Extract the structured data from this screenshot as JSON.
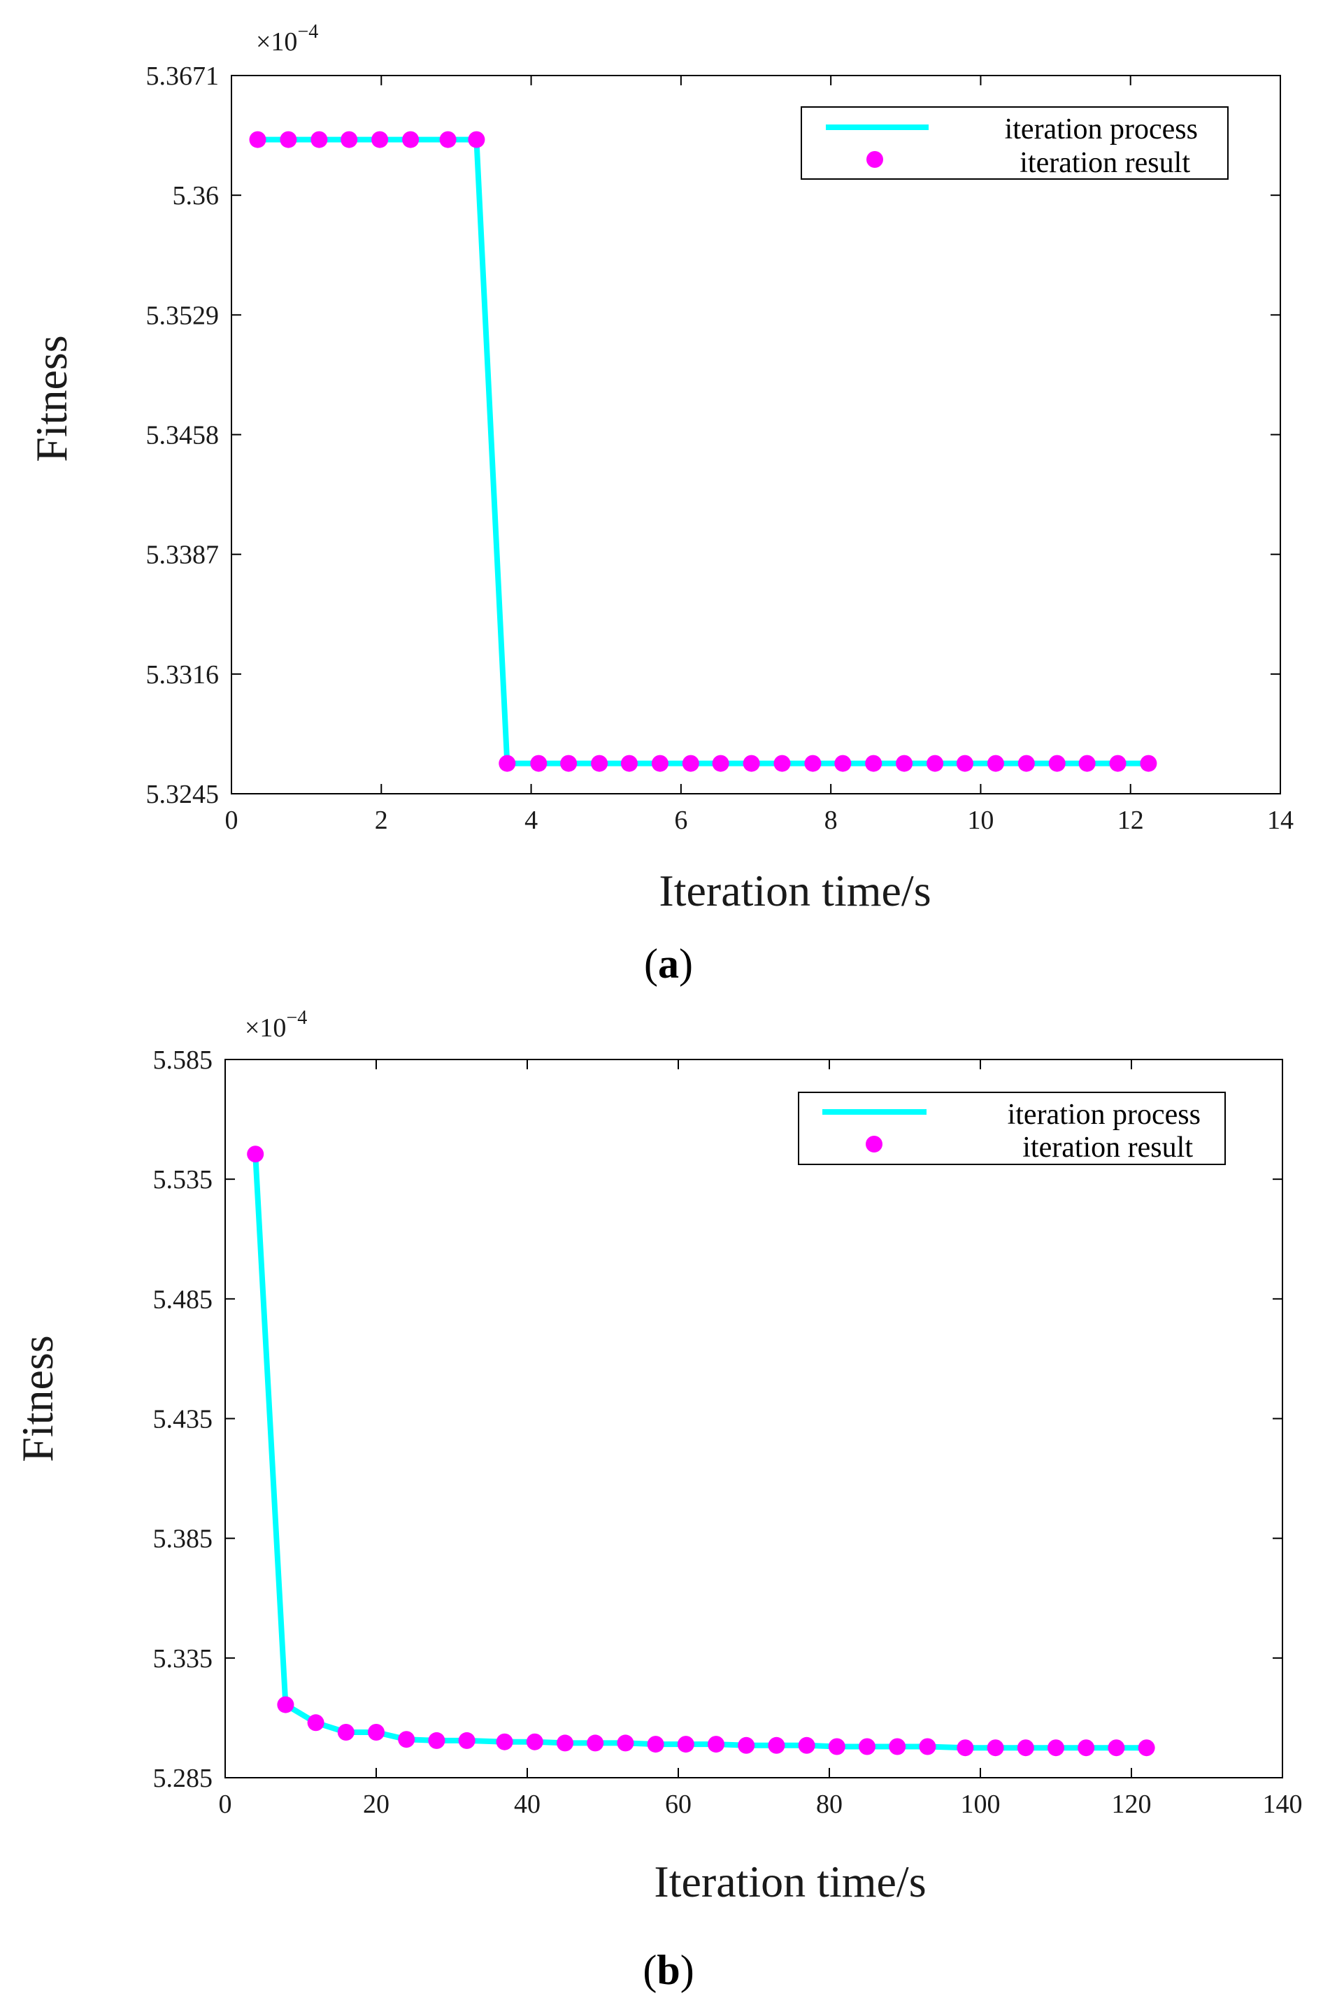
{
  "colors": {
    "line": "#00ffff",
    "marker": "#ff00ff",
    "axis": "#000000"
  },
  "chart_data": [
    {
      "type": "line",
      "panel_label": "a",
      "xlabel": "Iteration time/s",
      "ylabel": "Fitness",
      "y_multiplier": "×10",
      "y_multiplier_exp": "−4",
      "xlim": [
        0,
        14
      ],
      "ylim": [
        5.3245,
        5.3671
      ],
      "xticks": [
        "0",
        "2",
        "4",
        "6",
        "8",
        "10",
        "12",
        "14"
      ],
      "yticks": [
        "5.3245",
        "5.3316",
        "5.3387",
        "5.3458",
        "5.3529",
        "5.36",
        "5.3671"
      ],
      "legend": {
        "position": "top-right",
        "entries": [
          "iteration process",
          "iteration result"
        ]
      },
      "series": [
        {
          "name": "iteration result",
          "x": [
            0.35,
            0.76,
            1.17,
            1.57,
            1.98,
            2.39,
            2.89,
            3.27,
            3.68,
            4.1,
            4.5,
            4.91,
            5.31,
            5.72,
            6.13,
            6.53,
            6.94,
            7.35,
            7.76,
            8.16,
            8.57,
            8.98,
            9.39,
            9.79,
            10.2,
            10.61,
            11.02,
            11.42,
            11.83,
            12.24
          ],
          "y": [
            5.3633,
            5.3633,
            5.3633,
            5.3633,
            5.3633,
            5.3633,
            5.3633,
            5.3633,
            5.3263,
            5.3263,
            5.3263,
            5.3263,
            5.3263,
            5.3263,
            5.3263,
            5.3263,
            5.3263,
            5.3263,
            5.3263,
            5.3263,
            5.3263,
            5.3263,
            5.3263,
            5.3263,
            5.3263,
            5.3263,
            5.3263,
            5.3263,
            5.3263,
            5.3263
          ]
        }
      ]
    },
    {
      "type": "line",
      "panel_label": "b",
      "xlabel": "Iteration time/s",
      "ylabel": "Fitness",
      "y_multiplier": "×10",
      "y_multiplier_exp": "−4",
      "xlim": [
        0,
        140
      ],
      "ylim": [
        5.285,
        5.585
      ],
      "xticks": [
        "0",
        "20",
        "40",
        "60",
        "80",
        "100",
        "120",
        "140"
      ],
      "yticks": [
        "5.285",
        "5.335",
        "5.385",
        "5.435",
        "5.485",
        "5.535",
        "5.585"
      ],
      "legend": {
        "position": "top-right",
        "entries": [
          "iteration process",
          "iteration result"
        ]
      },
      "series": [
        {
          "name": "iteration result",
          "x": [
            4,
            8,
            12,
            16,
            20,
            24,
            28,
            32,
            37,
            41,
            45,
            49,
            53,
            57,
            61,
            65,
            69,
            73,
            77,
            81,
            85,
            89,
            93,
            98,
            102,
            106,
            110,
            114,
            118,
            122
          ],
          "y": [
            5.5455,
            5.3155,
            5.308,
            5.304,
            5.304,
            5.301,
            5.3005,
            5.3005,
            5.3,
            5.3,
            5.2995,
            5.2995,
            5.2995,
            5.299,
            5.299,
            5.299,
            5.2985,
            5.2985,
            5.2985,
            5.298,
            5.298,
            5.298,
            5.298,
            5.2975,
            5.2975,
            5.2975,
            5.2975,
            5.2975,
            5.2975,
            5.2975
          ]
        }
      ]
    }
  ]
}
